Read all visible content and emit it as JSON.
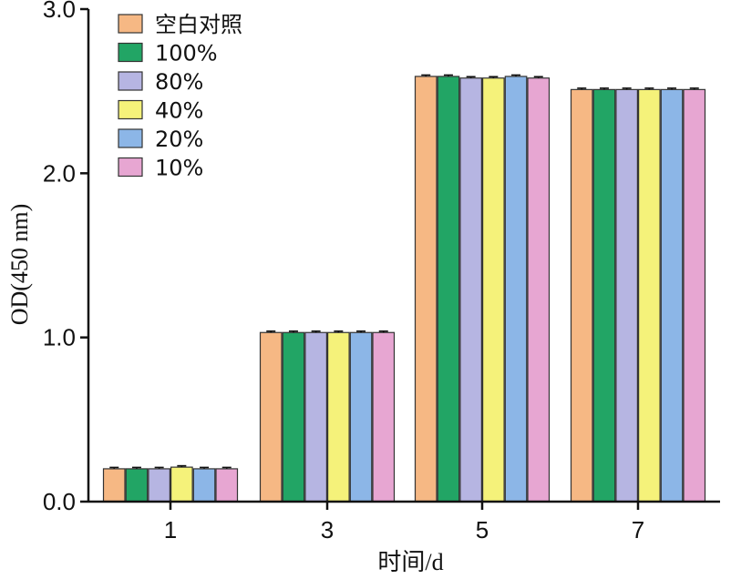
{
  "chart_data": {
    "type": "bar",
    "xlabel": "时间/d",
    "ylabel": "OD(450 nm)",
    "ylim": [
      0,
      3.0
    ],
    "yticks": [
      0.0,
      1.0,
      2.0,
      3.0
    ],
    "ytick_labels": [
      "0.0",
      "1.0",
      "2.0",
      "3.0"
    ],
    "categories": [
      "1",
      "3",
      "5",
      "7"
    ],
    "legend_position": "top-left",
    "series": [
      {
        "name": "空白对照",
        "color": "#F6B884",
        "values": [
          0.2,
          1.03,
          2.59,
          2.51
        ]
      },
      {
        "name": "100%",
        "color": "#22A565",
        "values": [
          0.2,
          1.03,
          2.59,
          2.51
        ]
      },
      {
        "name": "80%",
        "color": "#B6B5E2",
        "values": [
          0.2,
          1.03,
          2.58,
          2.51
        ]
      },
      {
        "name": "40%",
        "color": "#F5F27A",
        "values": [
          0.21,
          1.03,
          2.58,
          2.51
        ]
      },
      {
        "name": "20%",
        "color": "#8CB6E7",
        "values": [
          0.2,
          1.03,
          2.59,
          2.51
        ]
      },
      {
        "name": "10%",
        "color": "#E7A6D2",
        "values": [
          0.2,
          1.03,
          2.58,
          2.51
        ]
      }
    ]
  }
}
